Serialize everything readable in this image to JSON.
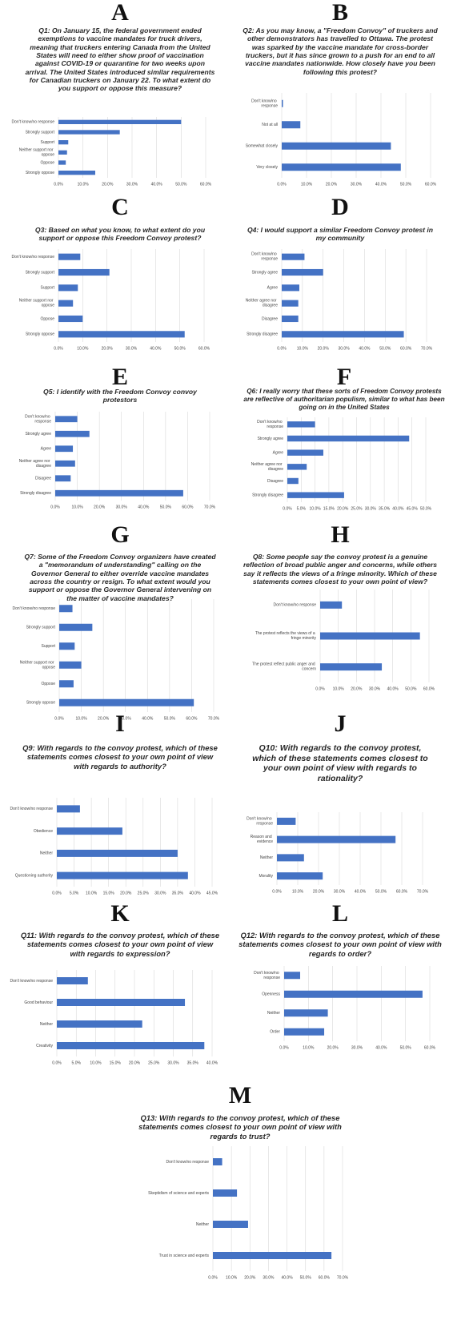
{
  "chart_data": [
    {
      "type": "bar",
      "orientation": "horizontal",
      "panel_label": "A",
      "title": "Q1: On January 15, the federal government ended exemptions to vaccine mandates for truck drivers, meaning that truckers entering Canada from the United States will need to either show proof of vaccination against COVID-19 or quarantine for two weeks upon arrival. The United States introduced similar requirements for Canadian truckers on January 22. To what extent do you support or oppose this measure?",
      "categories": [
        "Don't know/no response",
        "Strongly support",
        "Support",
        "Neither support nor oppose",
        "Oppose",
        "Strongly oppose"
      ],
      "values": [
        50,
        25,
        4,
        3.5,
        3,
        15
      ],
      "color": "#4472c4",
      "grid": true,
      "xlim": [
        0,
        60
      ],
      "xticks": [
        {
          "value": 0,
          "label": "0.0%"
        },
        {
          "value": 10,
          "label": "10.0%"
        },
        {
          "value": 20,
          "label": "20.0%"
        },
        {
          "value": 30,
          "label": "30.0%"
        },
        {
          "value": 40,
          "label": "40.0%"
        },
        {
          "value": 50,
          "label": "50.0%"
        },
        {
          "value": 60,
          "label": "60.0%"
        }
      ]
    },
    {
      "type": "bar",
      "orientation": "horizontal",
      "panel_label": "B",
      "title": "Q2: As you may know, a \"Freedom Convoy\" of truckers and other demonstrators has travelled to Ottawa. The protest was sparked by the vaccine mandate for cross-border truckers, but it has since grown to a push for an end to all vaccine mandates nationwide. How closely have you been following this protest?",
      "categories": [
        "Don't know/no response",
        "Not at all",
        "Somewhat closely",
        "Very closely"
      ],
      "values": [
        0.5,
        7.5,
        44,
        48
      ],
      "color": "#4472c4",
      "grid": true,
      "xlim": [
        0,
        60
      ],
      "xticks": [
        {
          "value": 0,
          "label": "0.0%"
        },
        {
          "value": 10,
          "label": "10.0%"
        },
        {
          "value": 20,
          "label": "20.0%"
        },
        {
          "value": 30,
          "label": "30.0%"
        },
        {
          "value": 40,
          "label": "40.0%"
        },
        {
          "value": 50,
          "label": "50.0%"
        },
        {
          "value": 60,
          "label": "60.0%"
        }
      ]
    },
    {
      "type": "bar",
      "orientation": "horizontal",
      "panel_label": "C",
      "title": "Q3: Based on what you know, to what extent do you support or oppose this Freedom Convoy protest?",
      "categories": [
        "Don't know/no response",
        "Strongly support",
        "Support",
        "Neither support nor oppose",
        "Oppose",
        "Strongly oppose"
      ],
      "values": [
        9,
        21,
        8,
        6,
        10,
        52
      ],
      "color": "#4472c4",
      "grid": true,
      "xlim": [
        0,
        60
      ],
      "xticks": [
        {
          "value": 0,
          "label": "0.0%"
        },
        {
          "value": 10,
          "label": "10.0%"
        },
        {
          "value": 20,
          "label": "20.0%"
        },
        {
          "value": 30,
          "label": "30.0%"
        },
        {
          "value": 40,
          "label": "40.0%"
        },
        {
          "value": 50,
          "label": "50.0%"
        },
        {
          "value": 60,
          "label": "60.0%"
        }
      ]
    },
    {
      "type": "bar",
      "orientation": "horizontal",
      "panel_label": "D",
      "title": "Q4: I would support a similar Freedom Convoy protest in my community",
      "categories": [
        "Don't know/no response",
        "Strongly agree",
        "Agree",
        "Neither agree nor disagree",
        "Disagree",
        "Strongly disagree"
      ],
      "values": [
        11,
        20,
        8.5,
        8,
        8,
        59
      ],
      "color": "#4472c4",
      "grid": true,
      "xlim": [
        0,
        70
      ],
      "xticks": [
        {
          "value": 0,
          "label": "0.0%"
        },
        {
          "value": 10,
          "label": "10.0%"
        },
        {
          "value": 20,
          "label": "20.0%"
        },
        {
          "value": 30,
          "label": "30.0%"
        },
        {
          "value": 40,
          "label": "40.0%"
        },
        {
          "value": 50,
          "label": "50.0%"
        },
        {
          "value": 60,
          "label": "60.0%"
        },
        {
          "value": 70,
          "label": "70.0%"
        }
      ]
    },
    {
      "type": "bar",
      "orientation": "horizontal",
      "panel_label": "E",
      "title": "Q5: I identify with the Freedom Convoy convoy protestors",
      "categories": [
        "Don't know/no response",
        "Strongly agree",
        "Agree",
        "Neither agree nor disagree",
        "Disagree",
        "Strongly disagree"
      ],
      "values": [
        10,
        15.5,
        8,
        9,
        7,
        58
      ],
      "color": "#4472c4",
      "grid": true,
      "xlim": [
        0,
        70
      ],
      "xticks": [
        {
          "value": 0,
          "label": "0.0%"
        },
        {
          "value": 10,
          "label": "10.0%"
        },
        {
          "value": 20,
          "label": "20.0%"
        },
        {
          "value": 30,
          "label": "30.0%"
        },
        {
          "value": 40,
          "label": "40.0%"
        },
        {
          "value": 50,
          "label": "50.0%"
        },
        {
          "value": 60,
          "label": "60.0%"
        },
        {
          "value": 70,
          "label": "70.0%"
        }
      ]
    },
    {
      "type": "bar",
      "orientation": "horizontal",
      "panel_label": "F",
      "title": "Q6: I really worry that these sorts of Freedom Convoy protests are reflective of authoritarian populism, similar to what has been going on in the United States",
      "categories": [
        "Don't know/no response",
        "Strongly agree",
        "Agree",
        "Neither agree nor disagree",
        "Disagree",
        "Strongly disagree"
      ],
      "values": [
        10,
        44,
        13,
        7,
        4,
        20.5
      ],
      "color": "#4472c4",
      "grid": true,
      "xlim": [
        0,
        50
      ],
      "xticks": [
        {
          "value": 0,
          "label": "0.0%"
        },
        {
          "value": 5,
          "label": "5.0%"
        },
        {
          "value": 10,
          "label": "10.0%"
        },
        {
          "value": 15,
          "label": "15.0%"
        },
        {
          "value": 20,
          "label": "20.0%"
        },
        {
          "value": 25,
          "label": "25.0%"
        },
        {
          "value": 30,
          "label": "30.0%"
        },
        {
          "value": 35,
          "label": "35.0%"
        },
        {
          "value": 40,
          "label": "40.0%"
        },
        {
          "value": 45,
          "label": "45.0%"
        },
        {
          "value": 50,
          "label": "50.0%"
        }
      ]
    },
    {
      "type": "bar",
      "orientation": "horizontal",
      "panel_label": "G",
      "title": "Q7: Some of the Freedom Convoy organizers have created a \"memorandum of understanding\" calling on the Governor General to either override vaccine mandates across the country or resign. To what extent would you support or oppose the Governor General intervening on the matter of vaccine mandates?",
      "categories": [
        "Don't know/no response",
        "Strongly support",
        "Support",
        "Neither support nor oppose",
        "Oppose",
        "Strongly oppose"
      ],
      "values": [
        6,
        15,
        7,
        10,
        6.5,
        61
      ],
      "color": "#4472c4",
      "grid": true,
      "xlim": [
        0,
        70
      ],
      "xticks": [
        {
          "value": 0,
          "label": "0.0%"
        },
        {
          "value": 10,
          "label": "10.0%"
        },
        {
          "value": 20,
          "label": "20.0%"
        },
        {
          "value": 30,
          "label": "30.0%"
        },
        {
          "value": 40,
          "label": "40.0%"
        },
        {
          "value": 50,
          "label": "50.0%"
        },
        {
          "value": 60,
          "label": "60.0%"
        },
        {
          "value": 70,
          "label": "70.0%"
        }
      ]
    },
    {
      "type": "bar",
      "orientation": "horizontal",
      "panel_label": "H",
      "title": "Q8: Some people say the convoy protest is a genuine reflection of broad public anger and concerns, while others say it reflects the views of a fringe minority. Which of these statements comes closest to your own point of view?",
      "categories": [
        "Don't know/no response",
        "The protest reflects the views of a fringe minority",
        "The protest reflect public anger and concern"
      ],
      "values": [
        12,
        55,
        34
      ],
      "color": "#4472c4",
      "grid": true,
      "xlim": [
        0,
        60
      ],
      "xticks": [
        {
          "value": 0,
          "label": "0.0%"
        },
        {
          "value": 10,
          "label": "10.0%"
        },
        {
          "value": 20,
          "label": "20.0%"
        },
        {
          "value": 30,
          "label": "30.0%"
        },
        {
          "value": 40,
          "label": "40.0%"
        },
        {
          "value": 50,
          "label": "50.0%"
        },
        {
          "value": 60,
          "label": "60.0%"
        }
      ]
    },
    {
      "type": "bar",
      "orientation": "horizontal",
      "panel_label": "I",
      "title": "Q9: With regards to the convoy protest, which of these statements comes closest to your own point of view with regards to authority?",
      "categories": [
        "Don't know/no response",
        "Obedience",
        "Neither",
        "Questioning authority"
      ],
      "values": [
        6.7,
        19,
        35,
        38
      ],
      "color": "#4472c4",
      "grid": true,
      "xlim": [
        0,
        45
      ],
      "xticks": [
        {
          "value": 0,
          "label": "0.0%"
        },
        {
          "value": 5,
          "label": "5.0%"
        },
        {
          "value": 10,
          "label": "10.0%"
        },
        {
          "value": 15,
          "label": "15.0%"
        },
        {
          "value": 20,
          "label": "20.0%"
        },
        {
          "value": 25,
          "label": "25.0%"
        },
        {
          "value": 30,
          "label": "30.0%"
        },
        {
          "value": 35,
          "label": "35.0%"
        },
        {
          "value": 40,
          "label": "40.0%"
        },
        {
          "value": 45,
          "label": "45.0%"
        }
      ]
    },
    {
      "type": "bar",
      "orientation": "horizontal",
      "panel_label": "J",
      "title": "Q10: With regards to the convoy protest, which of these statements comes closest to your own point of view with regards to rationality?",
      "categories": [
        "Don't know/no response",
        "Reason and evidence",
        "Neither",
        "Morality"
      ],
      "values": [
        9,
        57,
        13,
        22
      ],
      "color": "#4472c4",
      "grid": true,
      "xlim": [
        0,
        70
      ],
      "xticks": [
        {
          "value": 0,
          "label": "0.0%"
        },
        {
          "value": 10,
          "label": "10.0%"
        },
        {
          "value": 20,
          "label": "20.0%"
        },
        {
          "value": 30,
          "label": "30.0%"
        },
        {
          "value": 40,
          "label": "40.0%"
        },
        {
          "value": 50,
          "label": "50.0%"
        },
        {
          "value": 60,
          "label": "60.0%"
        },
        {
          "value": 70,
          "label": "70.0%"
        }
      ]
    },
    {
      "type": "bar",
      "orientation": "horizontal",
      "panel_label": "K",
      "title": "Q11: With regards to the convoy protest, which of these statements comes closest to your own point of view with regards to expression?",
      "categories": [
        "Don't know/no response",
        "Good behaviour",
        "Neither",
        "Creativity"
      ],
      "values": [
        8,
        33,
        22,
        38
      ],
      "color": "#4472c4",
      "grid": true,
      "xlim": [
        0,
        40
      ],
      "xticks": [
        {
          "value": 0,
          "label": "0.0%"
        },
        {
          "value": 5,
          "label": "5.0%"
        },
        {
          "value": 10,
          "label": "10.0%"
        },
        {
          "value": 15,
          "label": "15.0%"
        },
        {
          "value": 20,
          "label": "20.0%"
        },
        {
          "value": 25,
          "label": "25.0%"
        },
        {
          "value": 30,
          "label": "30.0%"
        },
        {
          "value": 35,
          "label": "35.0%"
        },
        {
          "value": 40,
          "label": "40.0%"
        }
      ]
    },
    {
      "type": "bar",
      "orientation": "horizontal",
      "panel_label": "L",
      "title": "Q12: With regards to the convoy protest, which of these statements comes closest to your own point of view with regards to order?",
      "categories": [
        "Don't know/no response",
        "Openness",
        "Neither",
        "Order"
      ],
      "values": [
        6.6,
        57,
        18,
        16.5
      ],
      "color": "#4472c4",
      "grid": true,
      "xlim": [
        0,
        60
      ],
      "xticks": [
        {
          "value": 0,
          "label": "0.0%"
        },
        {
          "value": 10,
          "label": "10.0%"
        },
        {
          "value": 20,
          "label": "20.0%"
        },
        {
          "value": 30,
          "label": "30.0%"
        },
        {
          "value": 40,
          "label": "40.0%"
        },
        {
          "value": 50,
          "label": "50.0%"
        },
        {
          "value": 60,
          "label": "60.0%"
        }
      ]
    },
    {
      "type": "bar",
      "orientation": "horizontal",
      "panel_label": "M",
      "title": "Q13: With regards to the convoy protest, which of these statements comes closest to your own point of view with regards to trust?",
      "categories": [
        "Don't know/no response",
        "Skeptidism of science and experts",
        "Neither",
        "Trust in science and experts"
      ],
      "values": [
        5,
        13,
        19,
        64
      ],
      "color": "#4472c4",
      "grid": true,
      "xlim": [
        0,
        70
      ],
      "xticks": [
        {
          "value": 0,
          "label": "0.0%"
        },
        {
          "value": 10,
          "label": "10.0%"
        },
        {
          "value": 20,
          "label": "20.0%"
        },
        {
          "value": 30,
          "label": "30.0%"
        },
        {
          "value": 40,
          "label": "40.0%"
        },
        {
          "value": 50,
          "label": "50.0%"
        },
        {
          "value": 60,
          "label": "60.0%"
        },
        {
          "value": 70,
          "label": "70.0%"
        }
      ]
    }
  ]
}
